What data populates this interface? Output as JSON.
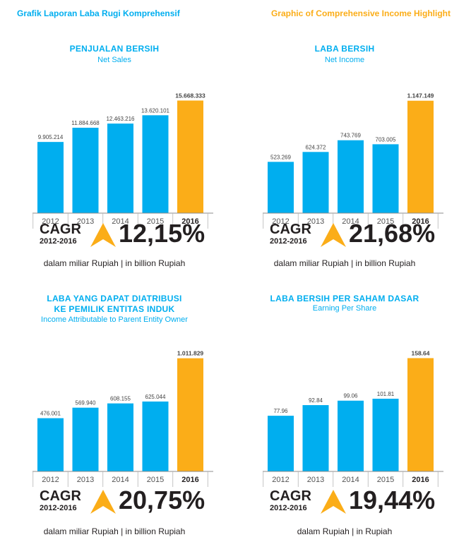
{
  "header": {
    "left": "Grafik Laporan Laba Rugi Komprehensif",
    "right": "Graphic of Comprehensive Income Highlight"
  },
  "colors": {
    "bar": "#00aeef",
    "highlight": "#fbad18",
    "text": "#231f20",
    "axis": "#8c8c8c"
  },
  "panels": [
    {
      "title_lines": [
        "PENJUALAN BERSIH"
      ],
      "subtitle": "Net Sales",
      "cagr_label": "CAGR",
      "cagr_years": "2012-2016",
      "cagr_value": "12,15%",
      "unit": "dalam miliar Rupiah | in billion Rupiah"
    },
    {
      "title_lines": [
        "LABA BERSIH"
      ],
      "subtitle": "Net Income",
      "cagr_label": "CAGR",
      "cagr_years": "2012-2016",
      "cagr_value": "21,68%",
      "unit": "dalam miliar Rupiah | in billion Rupiah"
    },
    {
      "title_lines": [
        "LABA YANG DAPAT DIATRIBUSI",
        "KE PEMILIK ENTITAS INDUK"
      ],
      "subtitle": "Income Attributable to Parent Entity Owner",
      "cagr_label": "CAGR",
      "cagr_years": "2012-2016",
      "cagr_value": "20,75%",
      "unit": "dalam miliar Rupiah | in billion Rupiah"
    },
    {
      "title_lines": [
        "LABA BERSIH PER SAHAM DASAR"
      ],
      "subtitle": "Earning Per Share",
      "cagr_label": "CAGR",
      "cagr_years": "2012-2016",
      "cagr_value": "19,44%",
      "unit": "dalam Rupiah | in Rupiah"
    }
  ],
  "chart_data": [
    {
      "type": "bar",
      "title": "PENJUALAN BERSIH",
      "subtitle": "Net Sales",
      "categories": [
        "2012",
        "2013",
        "2014",
        "2015",
        "2016"
      ],
      "values": [
        9905214,
        11884668,
        12463216,
        13620101,
        15668333
      ],
      "value_labels": [
        "9.905.214",
        "11.884.668",
        "12.463.216",
        "13.620.101",
        "15.668.333"
      ],
      "highlight_index": 4,
      "ylim": [
        0,
        16500000
      ],
      "grid": false
    },
    {
      "type": "bar",
      "title": "LABA BERSIH",
      "subtitle": "Net Income",
      "categories": [
        "2012",
        "2013",
        "2014",
        "2015",
        "2016"
      ],
      "values": [
        523269,
        624372,
        743769,
        703005,
        1147149
      ],
      "value_labels": [
        "523.269",
        "624.372",
        "743.769",
        "703.005",
        "1.147.149"
      ],
      "highlight_index": 4,
      "ylim": [
        0,
        1210000
      ],
      "grid": false
    },
    {
      "type": "bar",
      "title": "LABA YANG DAPAT DIATRIBUSI KE PEMILIK ENTITAS INDUK",
      "subtitle": "Income Attributable to Parent Entity Owner",
      "categories": [
        "2012",
        "2013",
        "2014",
        "2015",
        "2016"
      ],
      "values": [
        476001,
        569940,
        608155,
        625044,
        1011829
      ],
      "value_labels": [
        "476.001",
        "569.940",
        "608.155",
        "625.044",
        "1.011.829"
      ],
      "highlight_index": 4,
      "ylim": [
        0,
        1060000
      ],
      "grid": false
    },
    {
      "type": "bar",
      "title": "LABA BERSIH PER SAHAM DASAR",
      "subtitle": "Earning Per Share",
      "categories": [
        "2012",
        "2013",
        "2014",
        "2015",
        "2016"
      ],
      "values": [
        77.96,
        92.84,
        99.06,
        101.81,
        158.64
      ],
      "value_labels": [
        "77.96",
        "92.84",
        "99.06",
        "101.81",
        "158.64"
      ],
      "highlight_index": 4,
      "ylim": [
        0,
        166
      ],
      "grid": false
    }
  ]
}
